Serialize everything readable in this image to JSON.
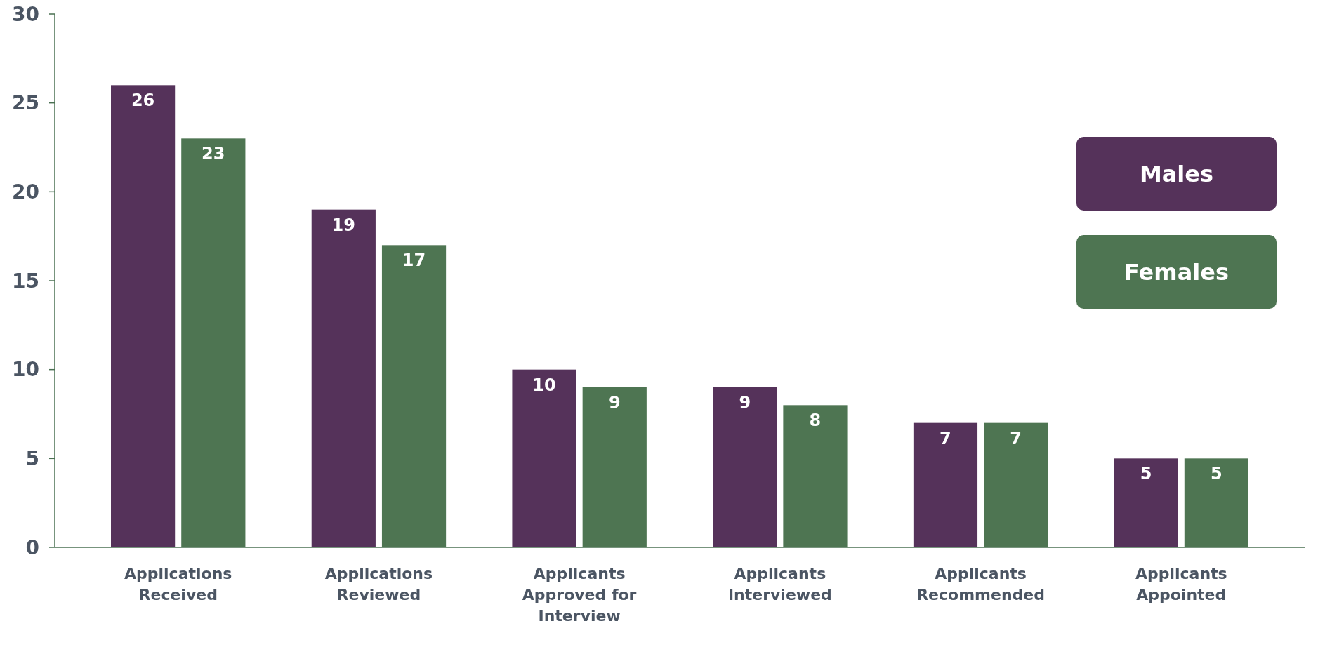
{
  "chart_data": {
    "type": "bar",
    "categories": [
      "Applications Received",
      "Applications Reviewed",
      "Applicants Approved for Interview",
      "Applicants Interviewed",
      "Applicants Recommended",
      "Applicants Appointed"
    ],
    "series": [
      {
        "name": "Males",
        "color": "#55325a",
        "values": [
          26,
          19,
          10,
          9,
          7,
          5
        ]
      },
      {
        "name": "Females",
        "color": "#4e7552",
        "values": [
          23,
          17,
          9,
          8,
          7,
          5
        ]
      }
    ],
    "ylim": [
      0,
      30
    ],
    "yticks": [
      0,
      5,
      10,
      15,
      20,
      25,
      30
    ],
    "grid": false,
    "legend": "top right",
    "data_labels": true
  }
}
